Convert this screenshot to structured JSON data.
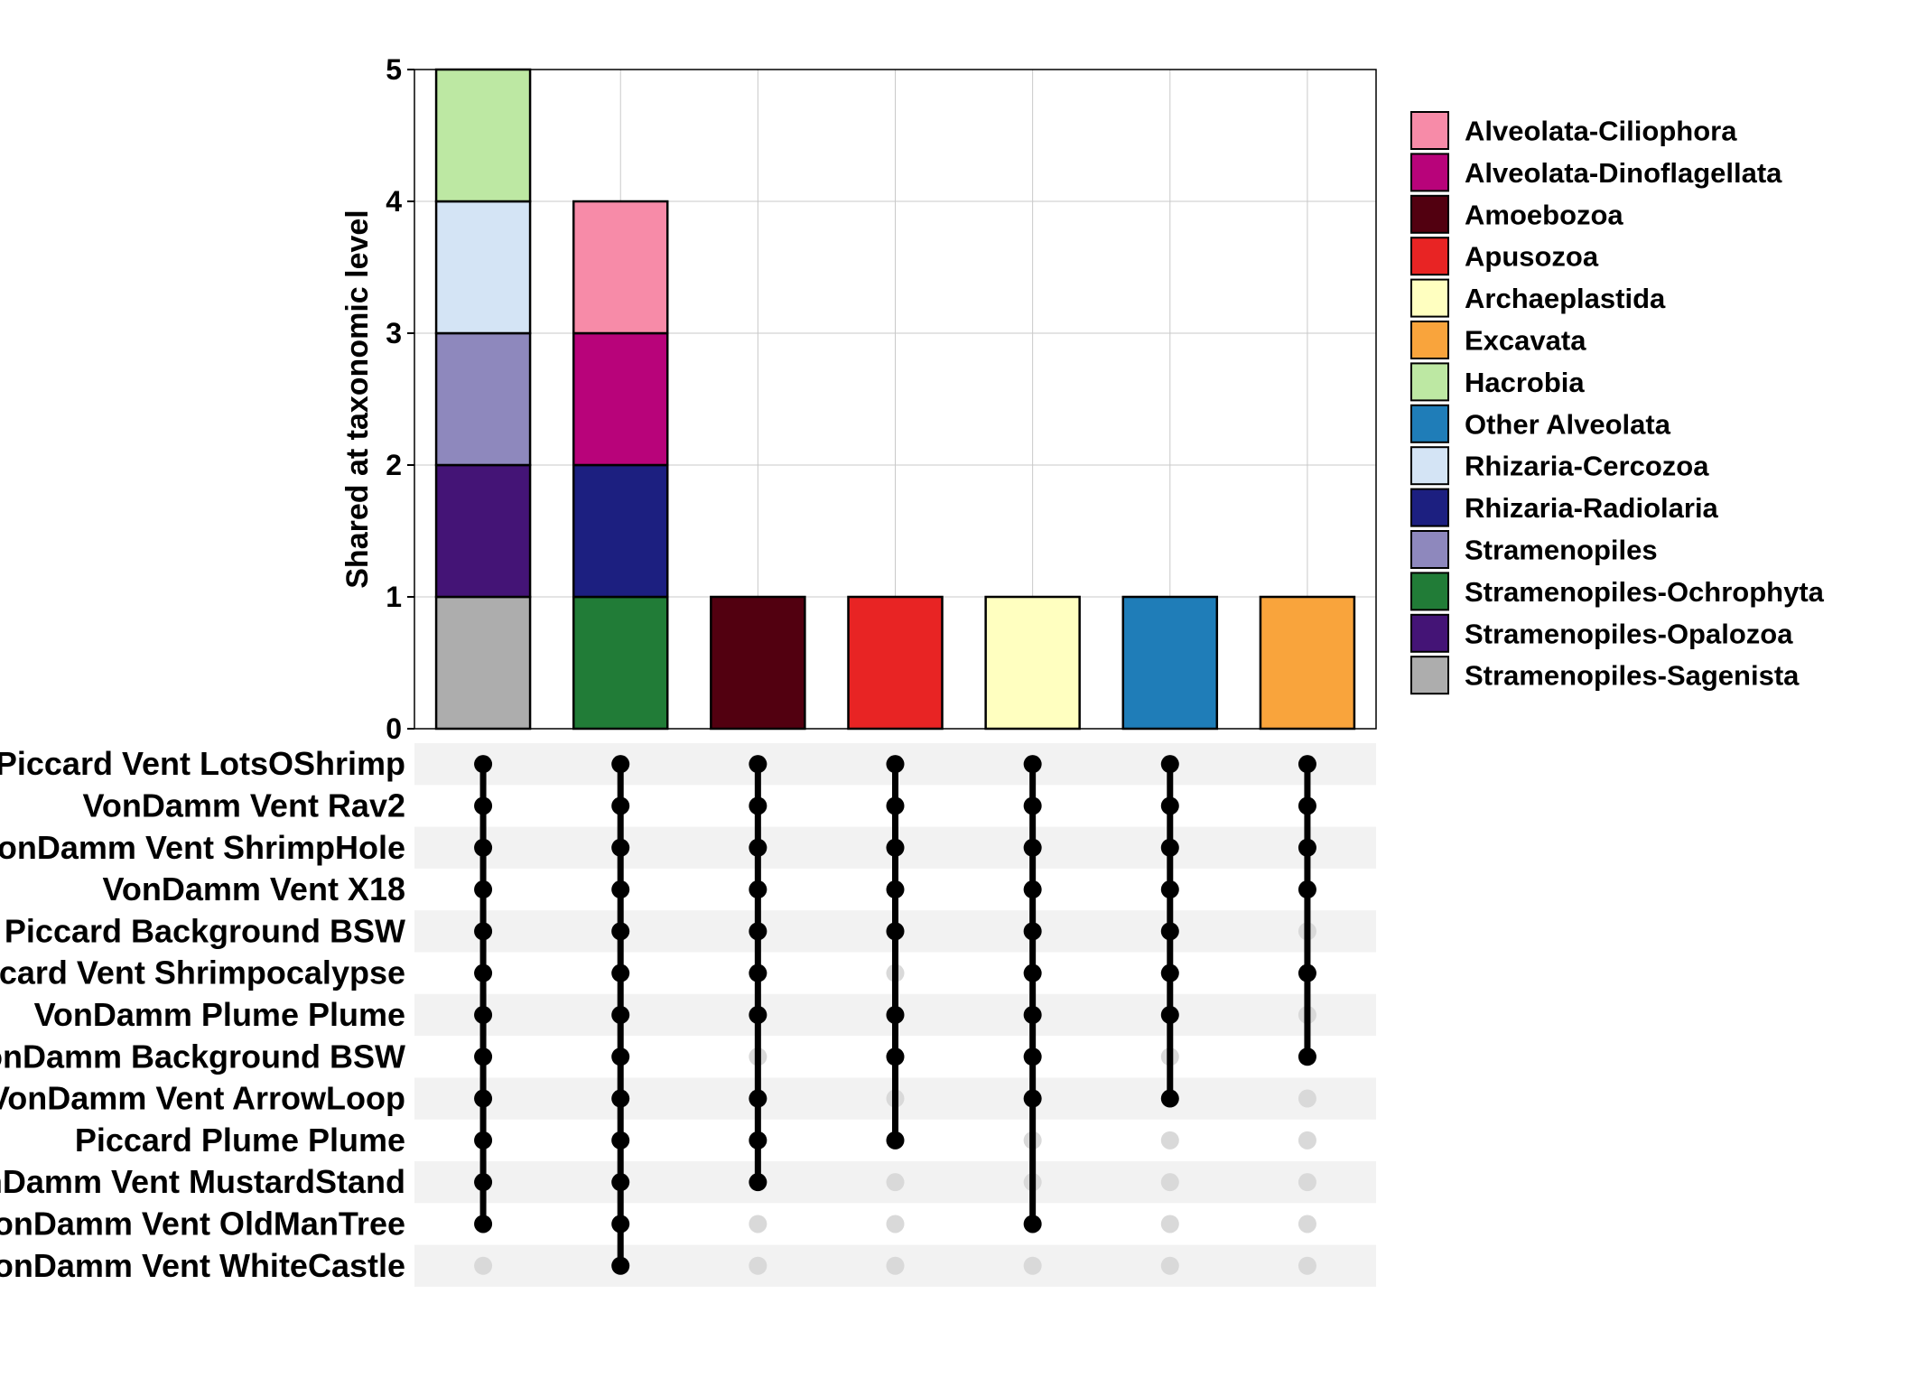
{
  "chart_data": {
    "type": "bar",
    "subtype": "upset-stacked",
    "ylabel": "Shared at taxonomic level",
    "ylim": [
      0,
      5
    ],
    "y_ticks": [
      "0",
      "1",
      "2",
      "3",
      "4",
      "5"
    ],
    "grid": true,
    "legend_position": "right",
    "legend": [
      {
        "name": "Alveolata-Ciliophora",
        "color": "#f78ba8"
      },
      {
        "name": "Alveolata-Dinoflagellata",
        "color": "#b8037a"
      },
      {
        "name": "Amoebozoa",
        "color": "#520010"
      },
      {
        "name": "Apusozoa",
        "color": "#e82424"
      },
      {
        "name": "Archaeplastida",
        "color": "#ffffc0"
      },
      {
        "name": "Excavata",
        "color": "#f9a43c"
      },
      {
        "name": "Hacrobia",
        "color": "#bde8a3"
      },
      {
        "name": "Other Alveolata",
        "color": "#1f7db8"
      },
      {
        "name": "Rhizaria-Cercozoa",
        "color": "#d4e4f5"
      },
      {
        "name": "Rhizaria-Radiolaria",
        "color": "#1c1f80"
      },
      {
        "name": "Stramenopiles",
        "color": "#8e88bd"
      },
      {
        "name": "Stramenopiles-Ochrophyta",
        "color": "#217c37"
      },
      {
        "name": "Stramenopiles-Opalozoa",
        "color": "#441476"
      },
      {
        "name": "Stramenopiles-Sagenista",
        "color": "#adadad"
      }
    ],
    "sets": [
      "Piccard Vent LotsOShrimp",
      "VonDamm Vent Rav2",
      "VonDamm Vent ShrimpHole",
      "VonDamm Vent X18",
      "Piccard Background BSW",
      "Piccard Vent Shrimpocalypse",
      "VonDamm Plume Plume",
      "VonDamm Background BSW",
      "VonDamm Vent ArrowLoop",
      "Piccard Plume Plume",
      "VonDamm Vent MustardStand",
      "VonDamm Vent OldManTree",
      "VonDamm Vent WhiteCastle"
    ],
    "intersections": [
      {
        "stack": [
          {
            "taxon": "Stramenopiles-Sagenista",
            "value": 1
          },
          {
            "taxon": "Stramenopiles-Opalozoa",
            "value": 1
          },
          {
            "taxon": "Stramenopiles",
            "value": 1
          },
          {
            "taxon": "Rhizaria-Cercozoa",
            "value": 1
          },
          {
            "taxon": "Hacrobia",
            "value": 1
          }
        ],
        "members": [
          1,
          1,
          1,
          1,
          1,
          1,
          1,
          1,
          1,
          1,
          1,
          1,
          0
        ]
      },
      {
        "stack": [
          {
            "taxon": "Stramenopiles-Ochrophyta",
            "value": 1
          },
          {
            "taxon": "Rhizaria-Radiolaria",
            "value": 1
          },
          {
            "taxon": "Alveolata-Dinoflagellata",
            "value": 1
          },
          {
            "taxon": "Alveolata-Ciliophora",
            "value": 1
          }
        ],
        "members": [
          1,
          1,
          1,
          1,
          1,
          1,
          1,
          1,
          1,
          1,
          1,
          1,
          1
        ]
      },
      {
        "stack": [
          {
            "taxon": "Amoebozoa",
            "value": 1
          }
        ],
        "members": [
          1,
          1,
          1,
          1,
          1,
          1,
          1,
          0,
          1,
          1,
          1,
          0,
          0
        ]
      },
      {
        "stack": [
          {
            "taxon": "Apusozoa",
            "value": 1
          }
        ],
        "members": [
          1,
          1,
          1,
          1,
          1,
          0,
          1,
          1,
          0,
          1,
          0,
          0,
          0
        ]
      },
      {
        "stack": [
          {
            "taxon": "Archaeplastida",
            "value": 1
          }
        ],
        "members": [
          1,
          1,
          1,
          1,
          1,
          1,
          1,
          1,
          1,
          0,
          0,
          1,
          0
        ]
      },
      {
        "stack": [
          {
            "taxon": "Other Alveolata",
            "value": 1
          }
        ],
        "members": [
          1,
          1,
          1,
          1,
          1,
          1,
          1,
          0,
          1,
          0,
          0,
          0,
          0
        ]
      },
      {
        "stack": [
          {
            "taxon": "Excavata",
            "value": 1
          }
        ],
        "members": [
          1,
          1,
          1,
          1,
          0,
          1,
          0,
          1,
          0,
          0,
          0,
          0,
          0
        ]
      }
    ]
  }
}
